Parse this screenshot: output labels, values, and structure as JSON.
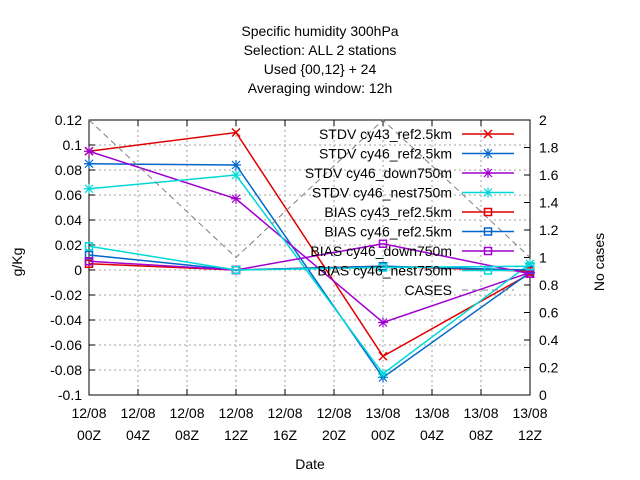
{
  "chart_data": {
    "type": "line",
    "title_lines": [
      "Specific humidity 300hPa",
      "Selection: ALL      2 stations",
      "Used {00,12} + 24",
      "Averaging window: 12h"
    ],
    "xlabel": "Date",
    "ylabel": "g/Kg",
    "y2label": "No cases",
    "x_ticks": [
      {
        "l1": "12/08",
        "l2": "00Z"
      },
      {
        "l1": "12/08",
        "l2": "04Z"
      },
      {
        "l1": "12/08",
        "l2": "08Z"
      },
      {
        "l1": "12/08",
        "l2": "12Z"
      },
      {
        "l1": "12/08",
        "l2": "16Z"
      },
      {
        "l1": "12/08",
        "l2": "20Z"
      },
      {
        "l1": "13/08",
        "l2": "00Z"
      },
      {
        "l1": "13/08",
        "l2": "04Z"
      },
      {
        "l1": "13/08",
        "l2": "08Z"
      },
      {
        "l1": "13/08",
        "l2": "12Z"
      }
    ],
    "x_hours": [
      0,
      4,
      8,
      12,
      16,
      20,
      24,
      28,
      32,
      36
    ],
    "xlim_hours": [
      0,
      36
    ],
    "y_ticks": [
      "-0.1",
      "-0.08",
      "-0.06",
      "-0.04",
      "-0.02",
      "0",
      "0.02",
      "0.04",
      "0.06",
      "0.08",
      "0.1",
      "0.12"
    ],
    "y_tick_values": [
      -0.1,
      -0.08,
      -0.06,
      -0.04,
      -0.02,
      0,
      0.02,
      0.04,
      0.06,
      0.08,
      0.1,
      0.12
    ],
    "ylim": [
      -0.1,
      0.12
    ],
    "y2_ticks": [
      "0",
      "0.2",
      "0.4",
      "0.6",
      "0.8",
      "1",
      "1.2",
      "1.4",
      "1.6",
      "1.8",
      "2"
    ],
    "y2_tick_values": [
      0,
      0.2,
      0.4,
      0.6,
      0.8,
      1,
      1.2,
      1.4,
      1.6,
      1.8,
      2
    ],
    "y2lim": [
      0,
      2
    ],
    "grid": true,
    "legend_position": "top-right",
    "series": [
      {
        "name": "STDV cy43_ref2.5km",
        "color": "#e00000",
        "marker": "x",
        "axis": "y1",
        "x": [
          0,
          12,
          24,
          36
        ],
        "values": [
          0.095,
          0.11,
          -0.069,
          -0.003
        ]
      },
      {
        "name": "STDV cy46_ref2.5km",
        "color": "#0066cc",
        "marker": "star",
        "axis": "y1",
        "x": [
          0,
          12,
          24,
          36
        ],
        "values": [
          0.085,
          0.084,
          -0.086,
          -0.002
        ]
      },
      {
        "name": "STDV cy46_down750m",
        "color": "#a000d0",
        "marker": "star",
        "axis": "y1",
        "x": [
          0,
          12,
          24,
          36
        ],
        "values": [
          0.095,
          0.057,
          -0.042,
          -0.002
        ]
      },
      {
        "name": "STDV cy46_nest750m",
        "color": "#00d8d8",
        "marker": "star",
        "axis": "y1",
        "x": [
          0,
          12,
          24,
          36
        ],
        "values": [
          0.065,
          0.076,
          -0.083,
          0.005
        ]
      },
      {
        "name": "BIAS cy43_ref2.5km",
        "color": "#e00000",
        "marker": "square",
        "axis": "y1",
        "x": [
          0,
          12,
          24,
          36
        ],
        "values": [
          0.005,
          0.0,
          0.003,
          -0.001
        ]
      },
      {
        "name": "BIAS cy46_ref2.5km",
        "color": "#0066cc",
        "marker": "square",
        "axis": "y1",
        "x": [
          0,
          12,
          24,
          36
        ],
        "values": [
          0.012,
          0.0,
          0.003,
          0.0
        ]
      },
      {
        "name": "BIAS cy46_down750m",
        "color": "#a000d0",
        "marker": "square",
        "axis": "y1",
        "x": [
          0,
          12,
          24,
          36
        ],
        "values": [
          0.007,
          0.0,
          0.021,
          -0.003
        ]
      },
      {
        "name": "BIAS cy46_nest750m",
        "color": "#00d8d8",
        "marker": "square",
        "axis": "y1",
        "x": [
          0,
          12,
          24,
          36
        ],
        "values": [
          0.019,
          0.0,
          0.002,
          0.003
        ]
      },
      {
        "name": "CASES",
        "color": "#808080",
        "marker": "none",
        "dashed": true,
        "axis": "y2",
        "x": [
          0,
          12,
          24,
          36
        ],
        "values": [
          2,
          1,
          2,
          1
        ]
      }
    ]
  }
}
